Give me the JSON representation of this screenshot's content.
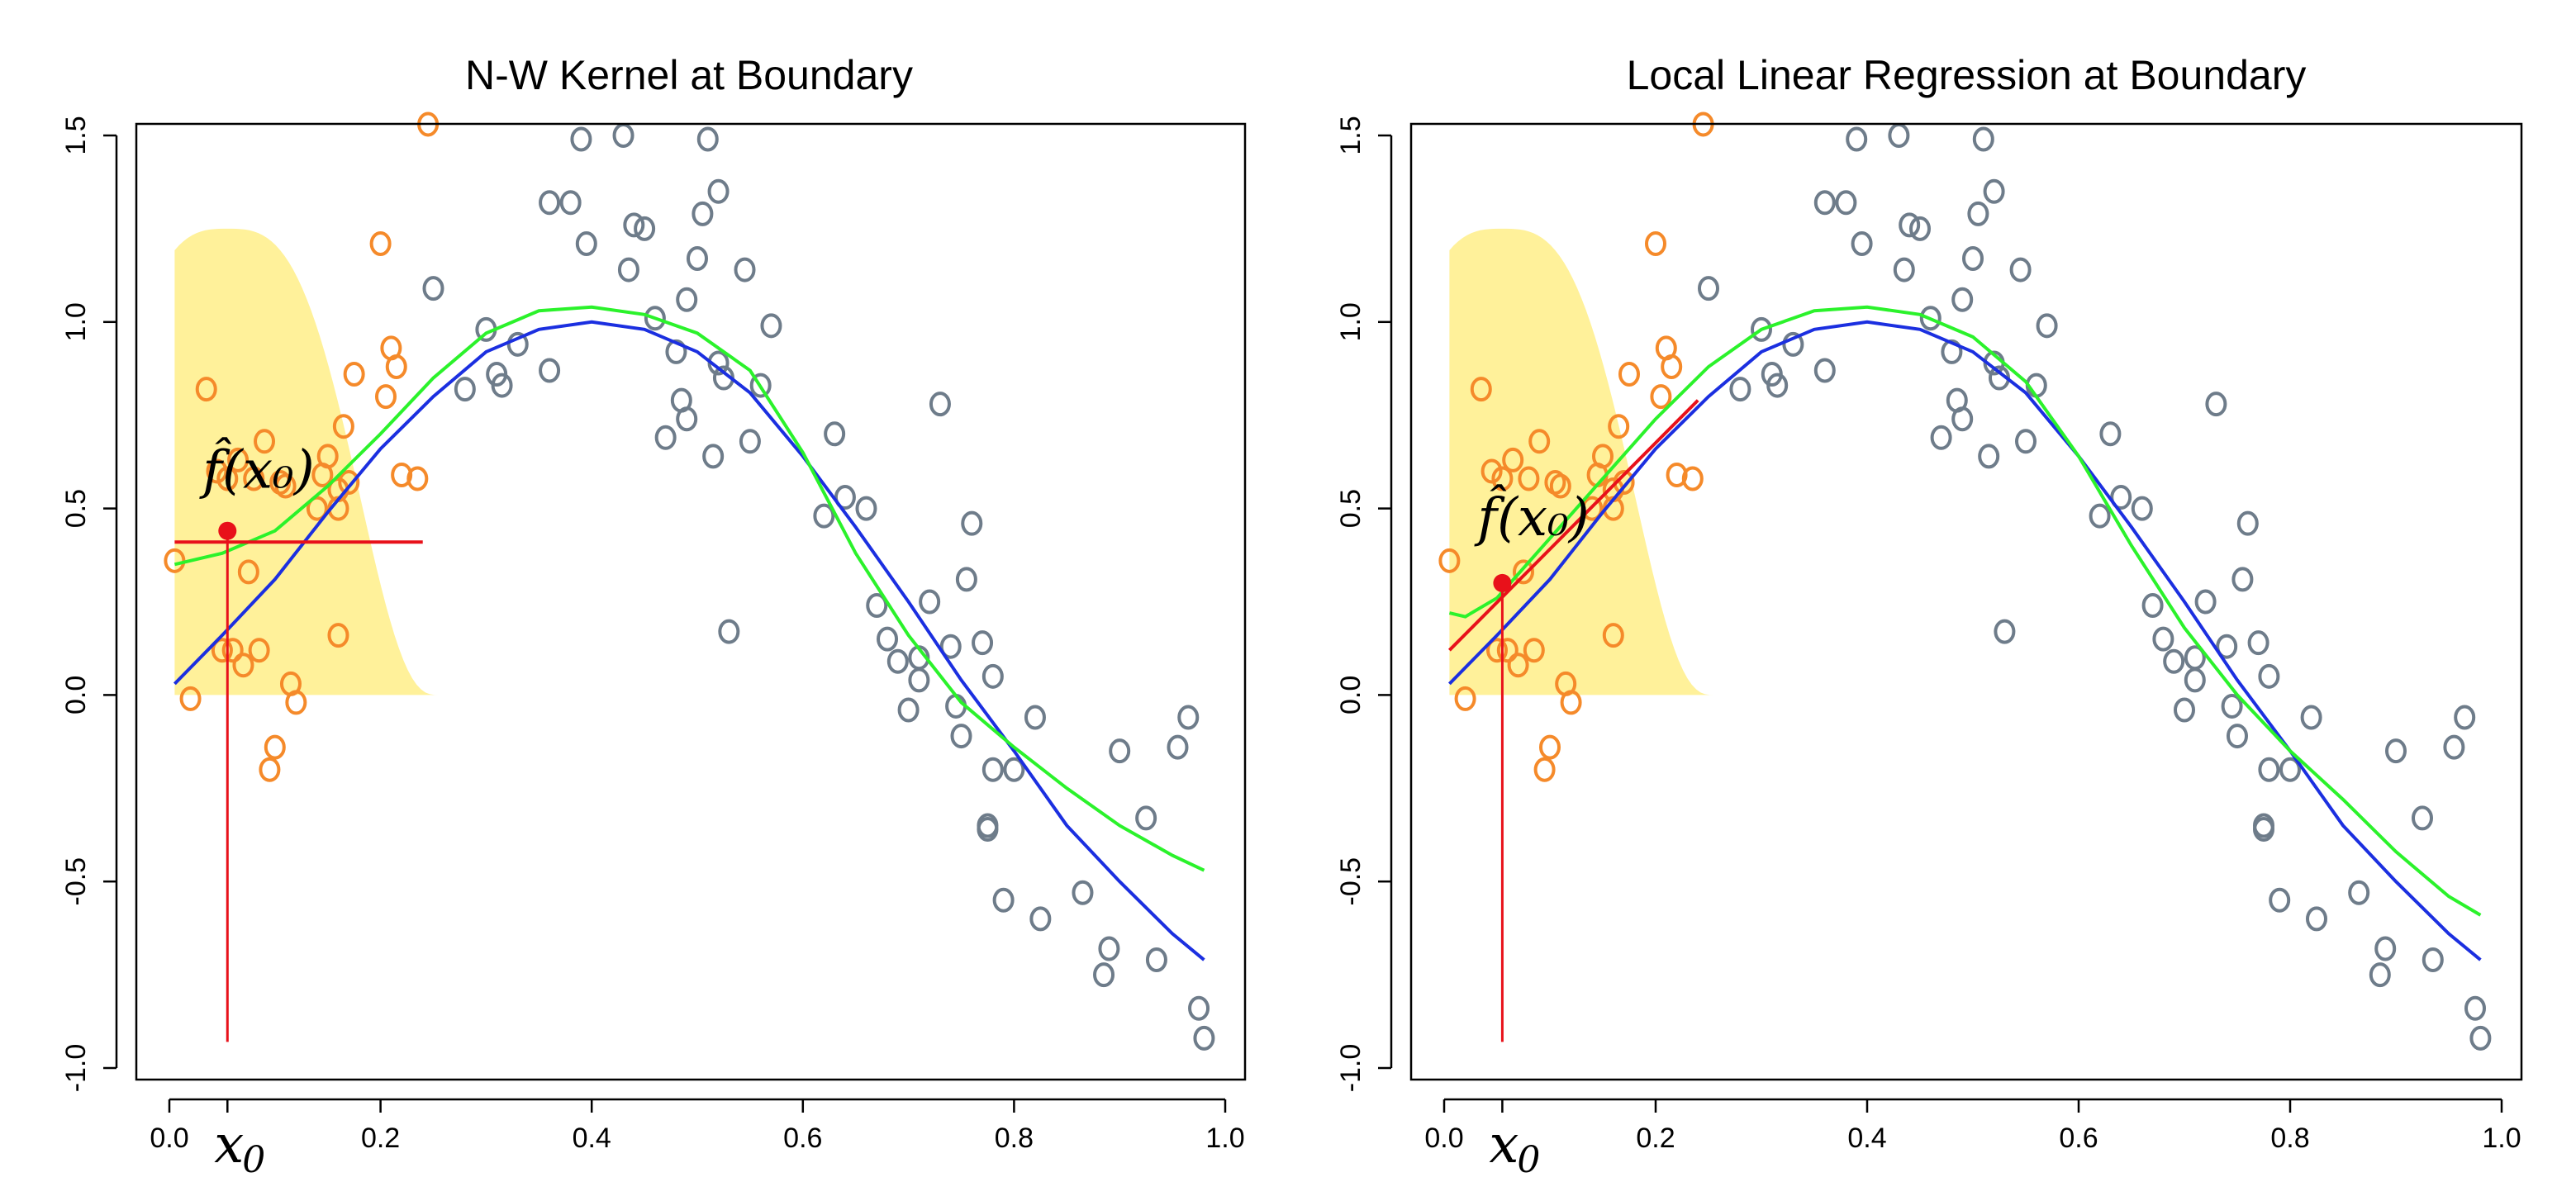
{
  "colors": {
    "kernel_fill": "#fff19a",
    "in_window_points": "#f58a2a",
    "out_window_points": "#6e7c8a",
    "true_curve": "#1b2fe0",
    "fitted_curve": "#2bf22b",
    "fit_line": "#e8111a",
    "estimate_point": "#e8111a"
  },
  "chart_data": [
    {
      "type": "scatter",
      "title": "N-W Kernel at Boundary",
      "xlim": [
        0.0,
        1.0
      ],
      "ylim": [
        -1.0,
        1.5
      ],
      "x_ticks": [
        "0.0",
        "0.2",
        "0.4",
        "0.6",
        "0.8",
        "1.0"
      ],
      "y_ticks": [
        "-1.0",
        "-0.5",
        "0.0",
        "0.5",
        "1.0",
        "1.5"
      ],
      "x0_label": "x",
      "x0_subscript": "0",
      "estimate_label": "f̂(x₀)",
      "x0": 0.055,
      "estimate": 0.44,
      "fit_line": {
        "x": [
          0.005,
          0.24
        ],
        "y": [
          0.41,
          0.41
        ]
      },
      "kernel_window": [
        0.005,
        0.255
      ],
      "kernel_peak": 1.25,
      "grid": false,
      "legend": "none",
      "fitted_curve": {
        "x": [
          0.005,
          0.05,
          0.1,
          0.15,
          0.2,
          0.25,
          0.3,
          0.35,
          0.4,
          0.45,
          0.5,
          0.55,
          0.6,
          0.65,
          0.7,
          0.75,
          0.8,
          0.85,
          0.9,
          0.95,
          0.98
        ],
        "y": [
          0.35,
          0.38,
          0.44,
          0.56,
          0.7,
          0.85,
          0.97,
          1.03,
          1.04,
          1.02,
          0.97,
          0.87,
          0.65,
          0.38,
          0.16,
          -0.02,
          -0.14,
          -0.25,
          -0.35,
          -0.43,
          -0.47
        ]
      }
    },
    {
      "type": "scatter",
      "title": "Local Linear Regression at Boundary",
      "xlim": [
        0.0,
        1.0
      ],
      "ylim": [
        -1.0,
        1.5
      ],
      "x_ticks": [
        "0.0",
        "0.2",
        "0.4",
        "0.6",
        "0.8",
        "1.0"
      ],
      "y_ticks": [
        "-1.0",
        "-0.5",
        "0.0",
        "0.5",
        "1.0",
        "1.5"
      ],
      "x0_label": "x",
      "x0_subscript": "0",
      "estimate_label": "f̂(x₀)",
      "x0": 0.055,
      "estimate": 0.3,
      "fit_line": {
        "x": [
          0.005,
          0.24
        ],
        "y": [
          0.12,
          0.79
        ]
      },
      "kernel_window": [
        0.005,
        0.255
      ],
      "kernel_peak": 1.25,
      "grid": false,
      "legend": "none",
      "fitted_curve": {
        "x": [
          0.005,
          0.02,
          0.05,
          0.1,
          0.15,
          0.2,
          0.25,
          0.3,
          0.35,
          0.4,
          0.45,
          0.5,
          0.55,
          0.6,
          0.65,
          0.7,
          0.75,
          0.8,
          0.85,
          0.9,
          0.95,
          0.98
        ],
        "y": [
          0.22,
          0.21,
          0.26,
          0.42,
          0.58,
          0.74,
          0.88,
          0.98,
          1.03,
          1.04,
          1.02,
          0.96,
          0.84,
          0.64,
          0.4,
          0.18,
          0.0,
          -0.15,
          -0.28,
          -0.42,
          -0.54,
          -0.59
        ]
      }
    }
  ],
  "true_curve": {
    "x": [
      0.005,
      0.05,
      0.1,
      0.15,
      0.2,
      0.25,
      0.3,
      0.35,
      0.4,
      0.45,
      0.5,
      0.55,
      0.6,
      0.65,
      0.7,
      0.75,
      0.8,
      0.85,
      0.9,
      0.95,
      0.98
    ],
    "y": [
      0.03,
      0.16,
      0.31,
      0.49,
      0.66,
      0.8,
      0.92,
      0.98,
      1.0,
      0.98,
      0.92,
      0.81,
      0.64,
      0.45,
      0.25,
      0.04,
      -0.15,
      -0.35,
      -0.5,
      -0.64,
      -0.71
    ]
  },
  "points": {
    "in_window": {
      "x": [
        0.005,
        0.02,
        0.035,
        0.045,
        0.05,
        0.055,
        0.06,
        0.065,
        0.07,
        0.075,
        0.08,
        0.085,
        0.09,
        0.095,
        0.1,
        0.105,
        0.11,
        0.115,
        0.12,
        0.14,
        0.145,
        0.15,
        0.16,
        0.16,
        0.16,
        0.165,
        0.17,
        0.175,
        0.2,
        0.205,
        0.21,
        0.215,
        0.22,
        0.235,
        0.245
      ],
      "y": [
        0.36,
        -0.01,
        0.82,
        0.6,
        0.12,
        0.58,
        0.12,
        0.63,
        0.08,
        0.33,
        0.58,
        0.12,
        0.68,
        -0.2,
        -0.14,
        0.57,
        0.56,
        0.03,
        -0.02,
        0.5,
        0.59,
        0.64,
        0.16,
        0.5,
        0.55,
        0.72,
        0.57,
        0.86,
        1.21,
        0.8,
        0.93,
        0.88,
        0.59,
        0.58,
        1.53
      ]
    },
    "out_window": {
      "x": [
        0.25,
        0.28,
        0.3,
        0.31,
        0.315,
        0.33,
        0.36,
        0.36,
        0.38,
        0.39,
        0.395,
        0.43,
        0.435,
        0.44,
        0.45,
        0.46,
        0.47,
        0.48,
        0.485,
        0.49,
        0.49,
        0.5,
        0.505,
        0.51,
        0.515,
        0.52,
        0.52,
        0.525,
        0.53,
        0.545,
        0.55,
        0.56,
        0.57,
        0.62,
        0.63,
        0.64,
        0.66,
        0.67,
        0.68,
        0.69,
        0.7,
        0.71,
        0.71,
        0.72,
        0.73,
        0.74,
        0.745,
        0.75,
        0.755,
        0.76,
        0.77,
        0.775,
        0.775,
        0.78,
        0.78,
        0.79,
        0.8,
        0.82,
        0.825,
        0.865,
        0.885,
        0.89,
        0.9,
        0.925,
        0.935,
        0.955,
        0.965,
        0.975,
        0.98
      ],
      "y": [
        1.09,
        0.82,
        0.98,
        0.86,
        0.83,
        0.94,
        0.87,
        1.32,
        1.32,
        1.49,
        1.21,
        1.5,
        1.14,
        1.26,
        1.25,
        1.01,
        0.69,
        0.92,
        0.79,
        1.06,
        0.74,
        1.17,
        1.29,
        1.49,
        0.64,
        1.35,
        0.89,
        0.85,
        0.17,
        1.14,
        0.68,
        0.83,
        0.99,
        0.48,
        0.7,
        0.53,
        0.5,
        0.24,
        0.15,
        0.09,
        -0.04,
        0.04,
        0.1,
        0.25,
        0.78,
        0.13,
        -0.03,
        -0.11,
        0.31,
        0.46,
        0.14,
        -0.36,
        -0.35,
        0.05,
        -0.2,
        -0.55,
        -0.2,
        -0.06,
        -0.6,
        -0.53,
        -0.75,
        -0.68,
        -0.15,
        -0.33,
        -0.71,
        -0.14,
        -0.06,
        -0.84,
        -0.92
      ]
    }
  }
}
